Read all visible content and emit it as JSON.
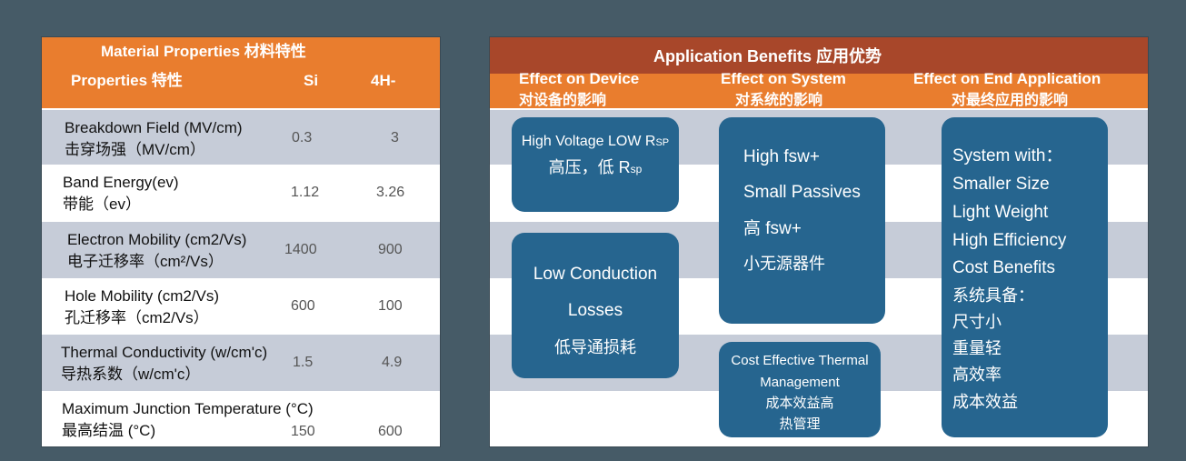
{
  "material": {
    "title": "Material Properties 材料特性",
    "col_property": "Properties 特性",
    "col_si": "Si",
    "col_sic": "4H-",
    "rows": [
      {
        "en": "Breakdown Field (MV/cm)",
        "zh": "击穿场强（MV/cm）",
        "si": "0.3",
        "sic": "3"
      },
      {
        "en": "Band Energy(ev)",
        "zh": "带能（ev）",
        "si": "1.12",
        "sic": "3.26"
      },
      {
        "en": "Electron Mobility (cm2/Vs)",
        "zh": "电子迁移率（cm²/Vs）",
        "si": "1400",
        "sic": "900"
      },
      {
        "en": "Hole Mobility (cm2/Vs)",
        "zh": "孔迁移率（cm2/Vs）",
        "si": "600",
        "sic": "100"
      },
      {
        "en": "Thermal Conductivity (w/cm'c)",
        "zh": "导热系数（w/cm'c）",
        "si": "1.5",
        "sic": "4.9"
      },
      {
        "en": "Maximum Junction Temperature (°C)",
        "zh": "最高结温 (°C)",
        "si": "150",
        "sic": "600"
      }
    ]
  },
  "benefits": {
    "title": "Application Benefits 应用优势",
    "cols": [
      {
        "en": "Effect on Device",
        "zh": "对设备的影响"
      },
      {
        "en": "Effect on System",
        "zh": "对系统的影响"
      },
      {
        "en": "Effect on End Application",
        "zh": "对最终应用的影响"
      }
    ],
    "device_box1": {
      "line1": "High Voltage LOW R",
      "line1_sub": "SP",
      "line2": "高压，低 R",
      "line2_sub": "sp"
    },
    "device_box2": [
      "Low Conduction",
      "Losses",
      "低导通损耗"
    ],
    "system_box1": [
      "High fsw+",
      "Small Passives",
      "高 fsw+",
      "小无源器件"
    ],
    "system_box2": [
      "Cost Effective Thermal",
      "Management",
      "成本效益高",
      "热管理"
    ],
    "end_box": [
      "System with：",
      "Smaller Size",
      "Light Weight",
      "High Efficiency",
      "Cost Benefits",
      "系统具备：",
      "尺寸小",
      "重量轻",
      "高效率",
      "成本效益"
    ]
  },
  "colors": {
    "background": "#465b67",
    "orange": "#e97d2e",
    "dark_header": "#a8472a",
    "box": "#26658f",
    "stripe": "#c6ccd8"
  }
}
